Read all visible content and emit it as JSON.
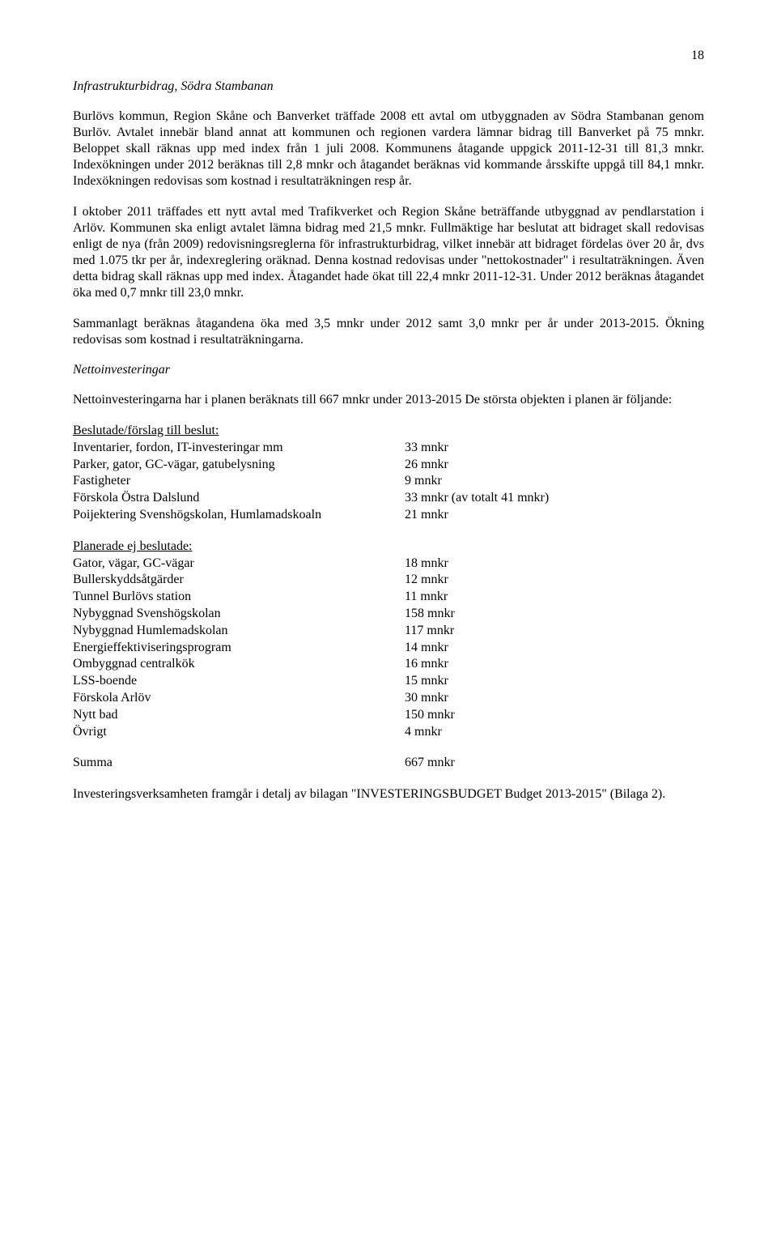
{
  "pageNumber": "18",
  "title1": "Infrastrukturbidrag, Södra Stambanan",
  "p1": "Burlövs kommun, Region Skåne och Banverket träffade 2008 ett avtal om utbyggnaden av Södra Stambanan genom Burlöv. Avtalet innebär bland annat att kommunen och regionen vardera lämnar bidrag till Banverket på 75 mnkr. Beloppet skall räknas upp med index från 1 juli 2008. Kommunens åtagande uppgick 2011-12-31 till 81,3 mnkr. Indexökningen under 2012 beräknas till 2,8 mnkr och åtagandet beräknas vid kommande årsskifte uppgå till 84,1 mnkr. Indexökningen redovisas som kostnad i resultaträkningen resp år.",
  "p2": "I oktober 2011 träffades ett nytt avtal med Trafikverket och Region Skåne beträffande utbyggnad av pendlarstation i Arlöv. Kommunen ska enligt avtalet lämna bidrag med 21,5 mnkr. Fullmäktige har beslutat att bidraget skall redovisas enligt de nya (från 2009) redovisningsreglerna för infrastrukturbidrag, vilket innebär att bidraget fördelas över 20 år, dvs med 1.075 tkr per år, indexreglering oräknad. Denna kostnad redovisas under \"nettokostnader\" i resultaträkningen. Även detta bidrag skall räknas upp med index. Åtagandet hade ökat till 22,4 mnkr 2011-12-31. Under 2012 beräknas åtagandet öka med 0,7 mnkr till 23,0 mnkr.",
  "p3": "Sammanlagt beräknas åtagandena öka med 3,5 mnkr under 2012 samt 3,0 mnkr per år under 2013-2015. Ökning redovisas som kostnad i resultaträkningarna.",
  "title2": "Nettoinvesteringar",
  "p4": "Nettoinvesteringarna har i planen beräknats till 667 mnkr under 2013-2015 De största objekten i planen är följande:",
  "listA": {
    "header": "Beslutade/förslag till beslut:",
    "rows": [
      {
        "label": "Inventarier, fordon, IT-investeringar mm",
        "value": "33 mnkr"
      },
      {
        "label": "Parker, gator, GC-vägar, gatubelysning",
        "value": "26 mnkr"
      },
      {
        "label": "Fastigheter",
        "value": "  9 mnkr"
      },
      {
        "label": "Förskola Östra Dalslund",
        "value": "33 mnkr (av totalt 41 mnkr)"
      },
      {
        "label": "Poijektering Svenshögskolan, Humlamadskoaln",
        "value": "21 mnkr"
      }
    ]
  },
  "listB": {
    "header": "Planerade ej beslutade:",
    "rows": [
      {
        "label": "Gator, vägar, GC-vägar",
        "value": "  18 mnkr"
      },
      {
        "label": "Bullerskyddsåtgärder",
        "value": "  12 mnkr"
      },
      {
        "label": "Tunnel Burlövs station",
        "value": "  11 mnkr"
      },
      {
        "label": "Nybyggnad Svenshögskolan",
        "value": "158 mnkr"
      },
      {
        "label": "Nybyggnad Humlemadskolan",
        "value": "117 mnkr"
      },
      {
        "label": "Energieffektiviseringsprogram",
        "value": "  14 mnkr"
      },
      {
        "label": "Ombyggnad centralkök",
        "value": "  16 mnkr"
      },
      {
        "label": "LSS-boende",
        "value": "  15 mnkr"
      },
      {
        "label": "Förskola Arlöv",
        "value": "  30 mnkr"
      },
      {
        "label": "Nytt bad",
        "value": "150 mnkr"
      },
      {
        "label": "Övrigt",
        "value": "    4 mnkr"
      }
    ]
  },
  "sumRow": {
    "label": "Summa",
    "value": "667 mnkr"
  },
  "p5": "Investeringsverksamheten framgår i detalj av bilagan \"INVESTERINGSBUDGET Budget 2013-2015\" (Bilaga 2)."
}
